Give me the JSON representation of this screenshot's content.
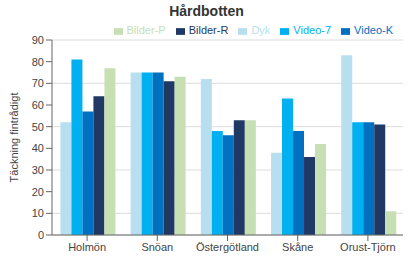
{
  "chart_data": {
    "type": "bar",
    "title": "Hårdbotten",
    "ylabel": "Täckning fintrådigt",
    "categories": [
      "Holmön",
      "Snöan",
      "Östergötland",
      "Skåne",
      "Orust-Tjörn"
    ],
    "series": [
      {
        "name": "Dyk",
        "color": "#b8dff0",
        "values": [
          52,
          75,
          72,
          38,
          83
        ]
      },
      {
        "name": "Video-7",
        "color": "#00b0f0",
        "values": [
          81,
          75,
          48,
          63,
          52
        ]
      },
      {
        "name": "Video-K",
        "color": "#0070c0",
        "values": [
          57,
          75,
          46,
          48,
          52
        ]
      },
      {
        "name": "Bilder-R",
        "color": "#1f3864",
        "values": [
          64,
          71,
          53,
          36,
          51
        ]
      },
      {
        "name": "Bilder-P",
        "color": "#c6e0b4",
        "values": [
          77,
          73,
          53,
          42,
          11
        ]
      }
    ],
    "ylim": [
      0,
      90
    ],
    "yticks": [
      0,
      10,
      20,
      30,
      40,
      50,
      60,
      70,
      80,
      90
    ],
    "grid": true,
    "legend": "upper right"
  }
}
